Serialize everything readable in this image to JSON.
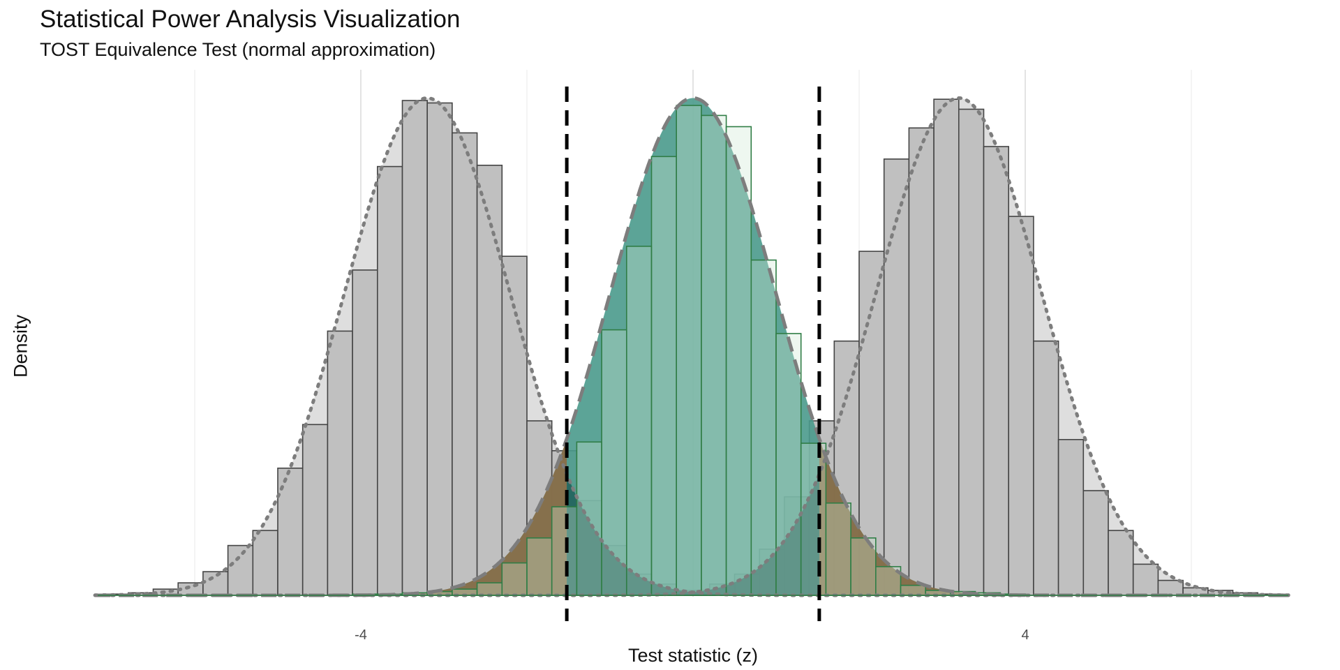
{
  "chart_data": {
    "type": "histogram-density",
    "title": "Statistical Power Analysis Visualization",
    "subtitle": "TOST Equivalence Test (normal approximation)",
    "xlabel": "Test statistic (z)",
    "ylabel": "Density",
    "xlim": [
      -7.2,
      7.2
    ],
    "x_ticks": [
      -4,
      4
    ],
    "x_minor_gridlines": [
      -6,
      -2,
      2,
      6
    ],
    "y_ticks": [],
    "grid": "vertical only",
    "equivalence_bounds": [
      -1.52,
      1.52
    ],
    "bin_width": 0.3,
    "colors": {
      "alt_hist_fill": "#c0c0c0",
      "alt_hist_stroke": "#444444",
      "alt_density_fill": "#dedede",
      "null_hist_fill": "#cfe8d4",
      "null_hist_stroke": "#2f7d45",
      "null_density_fill": "#4a9a8c",
      "rejection_fill": "#8c6a45",
      "tail_fill": "#1f5f59",
      "bound_line": "#000000"
    },
    "series": [
      {
        "role": "alternative (lower)",
        "distribution": "normal",
        "mean": -3.2,
        "sd": 1.0,
        "hist_bin_starts": [
          -7.1,
          -6.8,
          -6.5,
          -6.2,
          -5.9,
          -5.6,
          -5.3,
          -5.0,
          -4.7,
          -4.4,
          -4.1,
          -3.8,
          -3.5,
          -3.2,
          -2.9,
          -2.6,
          -2.3,
          -2.0,
          -1.7,
          -1.4,
          -1.1,
          -0.8,
          -0.5,
          -0.2,
          0.1
        ],
        "hist_density": [
          0.001,
          0.002,
          0.005,
          0.01,
          0.019,
          0.04,
          0.052,
          0.102,
          0.137,
          0.212,
          0.261,
          0.344,
          0.397,
          0.395,
          0.371,
          0.345,
          0.272,
          0.14,
          0.116,
          0.076,
          0.04,
          0.017,
          0.009,
          0.004,
          0.002
        ]
      },
      {
        "role": "alternative (upper)",
        "distribution": "normal",
        "mean": 3.2,
        "sd": 1.0,
        "hist_bin_starts": [
          -0.4,
          -0.1,
          0.2,
          0.5,
          0.8,
          1.1,
          1.4,
          1.7,
          2.0,
          2.3,
          2.6,
          2.9,
          3.2,
          3.5,
          3.8,
          4.1,
          4.4,
          4.7,
          5.0,
          5.3,
          5.6,
          5.9,
          6.2,
          6.5,
          6.8
        ],
        "hist_density": [
          0.002,
          0.004,
          0.009,
          0.017,
          0.037,
          0.079,
          0.14,
          0.204,
          0.276,
          0.35,
          0.375,
          0.398,
          0.39,
          0.36,
          0.304,
          0.204,
          0.125,
          0.084,
          0.052,
          0.025,
          0.012,
          0.006,
          0.004,
          0.002,
          0.001
        ]
      },
      {
        "role": "null (equivalence)",
        "distribution": "normal",
        "mean": 0.0,
        "sd": 1.0,
        "hist_bin_starts": [
          -4.1,
          -3.8,
          -3.5,
          -3.2,
          -2.9,
          -2.6,
          -2.3,
          -2.0,
          -1.7,
          -1.4,
          -1.1,
          -0.8,
          -0.5,
          -0.2,
          0.1,
          0.4,
          0.7,
          1.0,
          1.3,
          1.6,
          1.9,
          2.2,
          2.5,
          2.8,
          3.1,
          3.4,
          3.7
        ],
        "hist_density": [
          0.001,
          0.001,
          0.002,
          0.003,
          0.005,
          0.01,
          0.026,
          0.046,
          0.071,
          0.123,
          0.213,
          0.28,
          0.352,
          0.393,
          0.385,
          0.376,
          0.269,
          0.21,
          0.122,
          0.074,
          0.046,
          0.023,
          0.008,
          0.004,
          0.003,
          0.002,
          0.001
        ]
      }
    ]
  }
}
